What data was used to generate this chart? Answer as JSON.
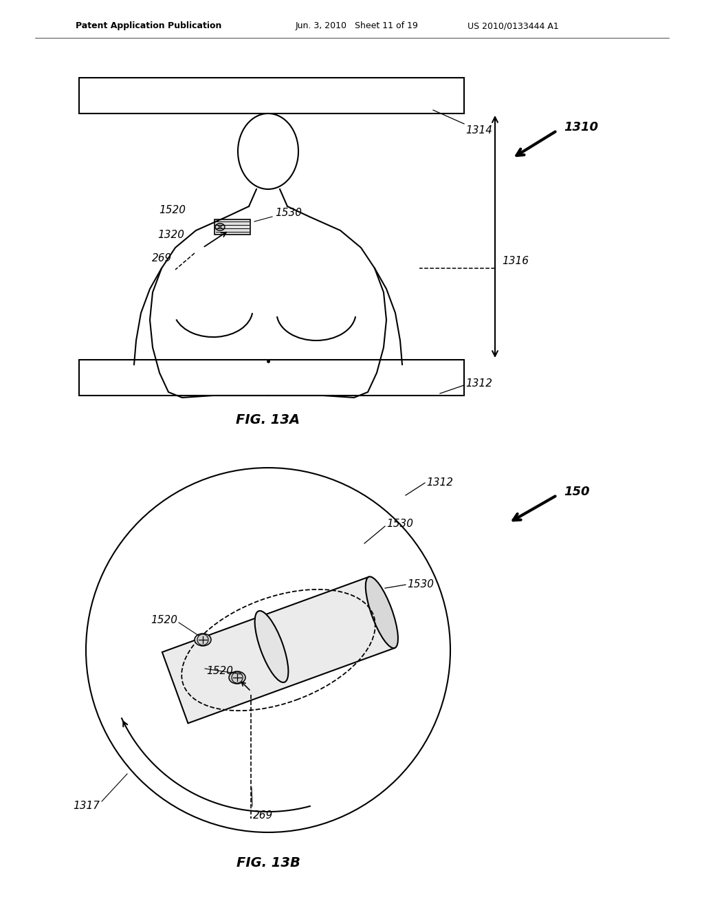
{
  "bg_color": "#ffffff",
  "line_color": "#000000",
  "header_text_left": "Patent Application Publication",
  "header_text_mid": "Jun. 3, 2010   Sheet 11 of 19",
  "header_text_right": "US 2010/0133444 A1",
  "fig13a_label": "FIG. 13A",
  "fig13b_label": "FIG. 13B"
}
